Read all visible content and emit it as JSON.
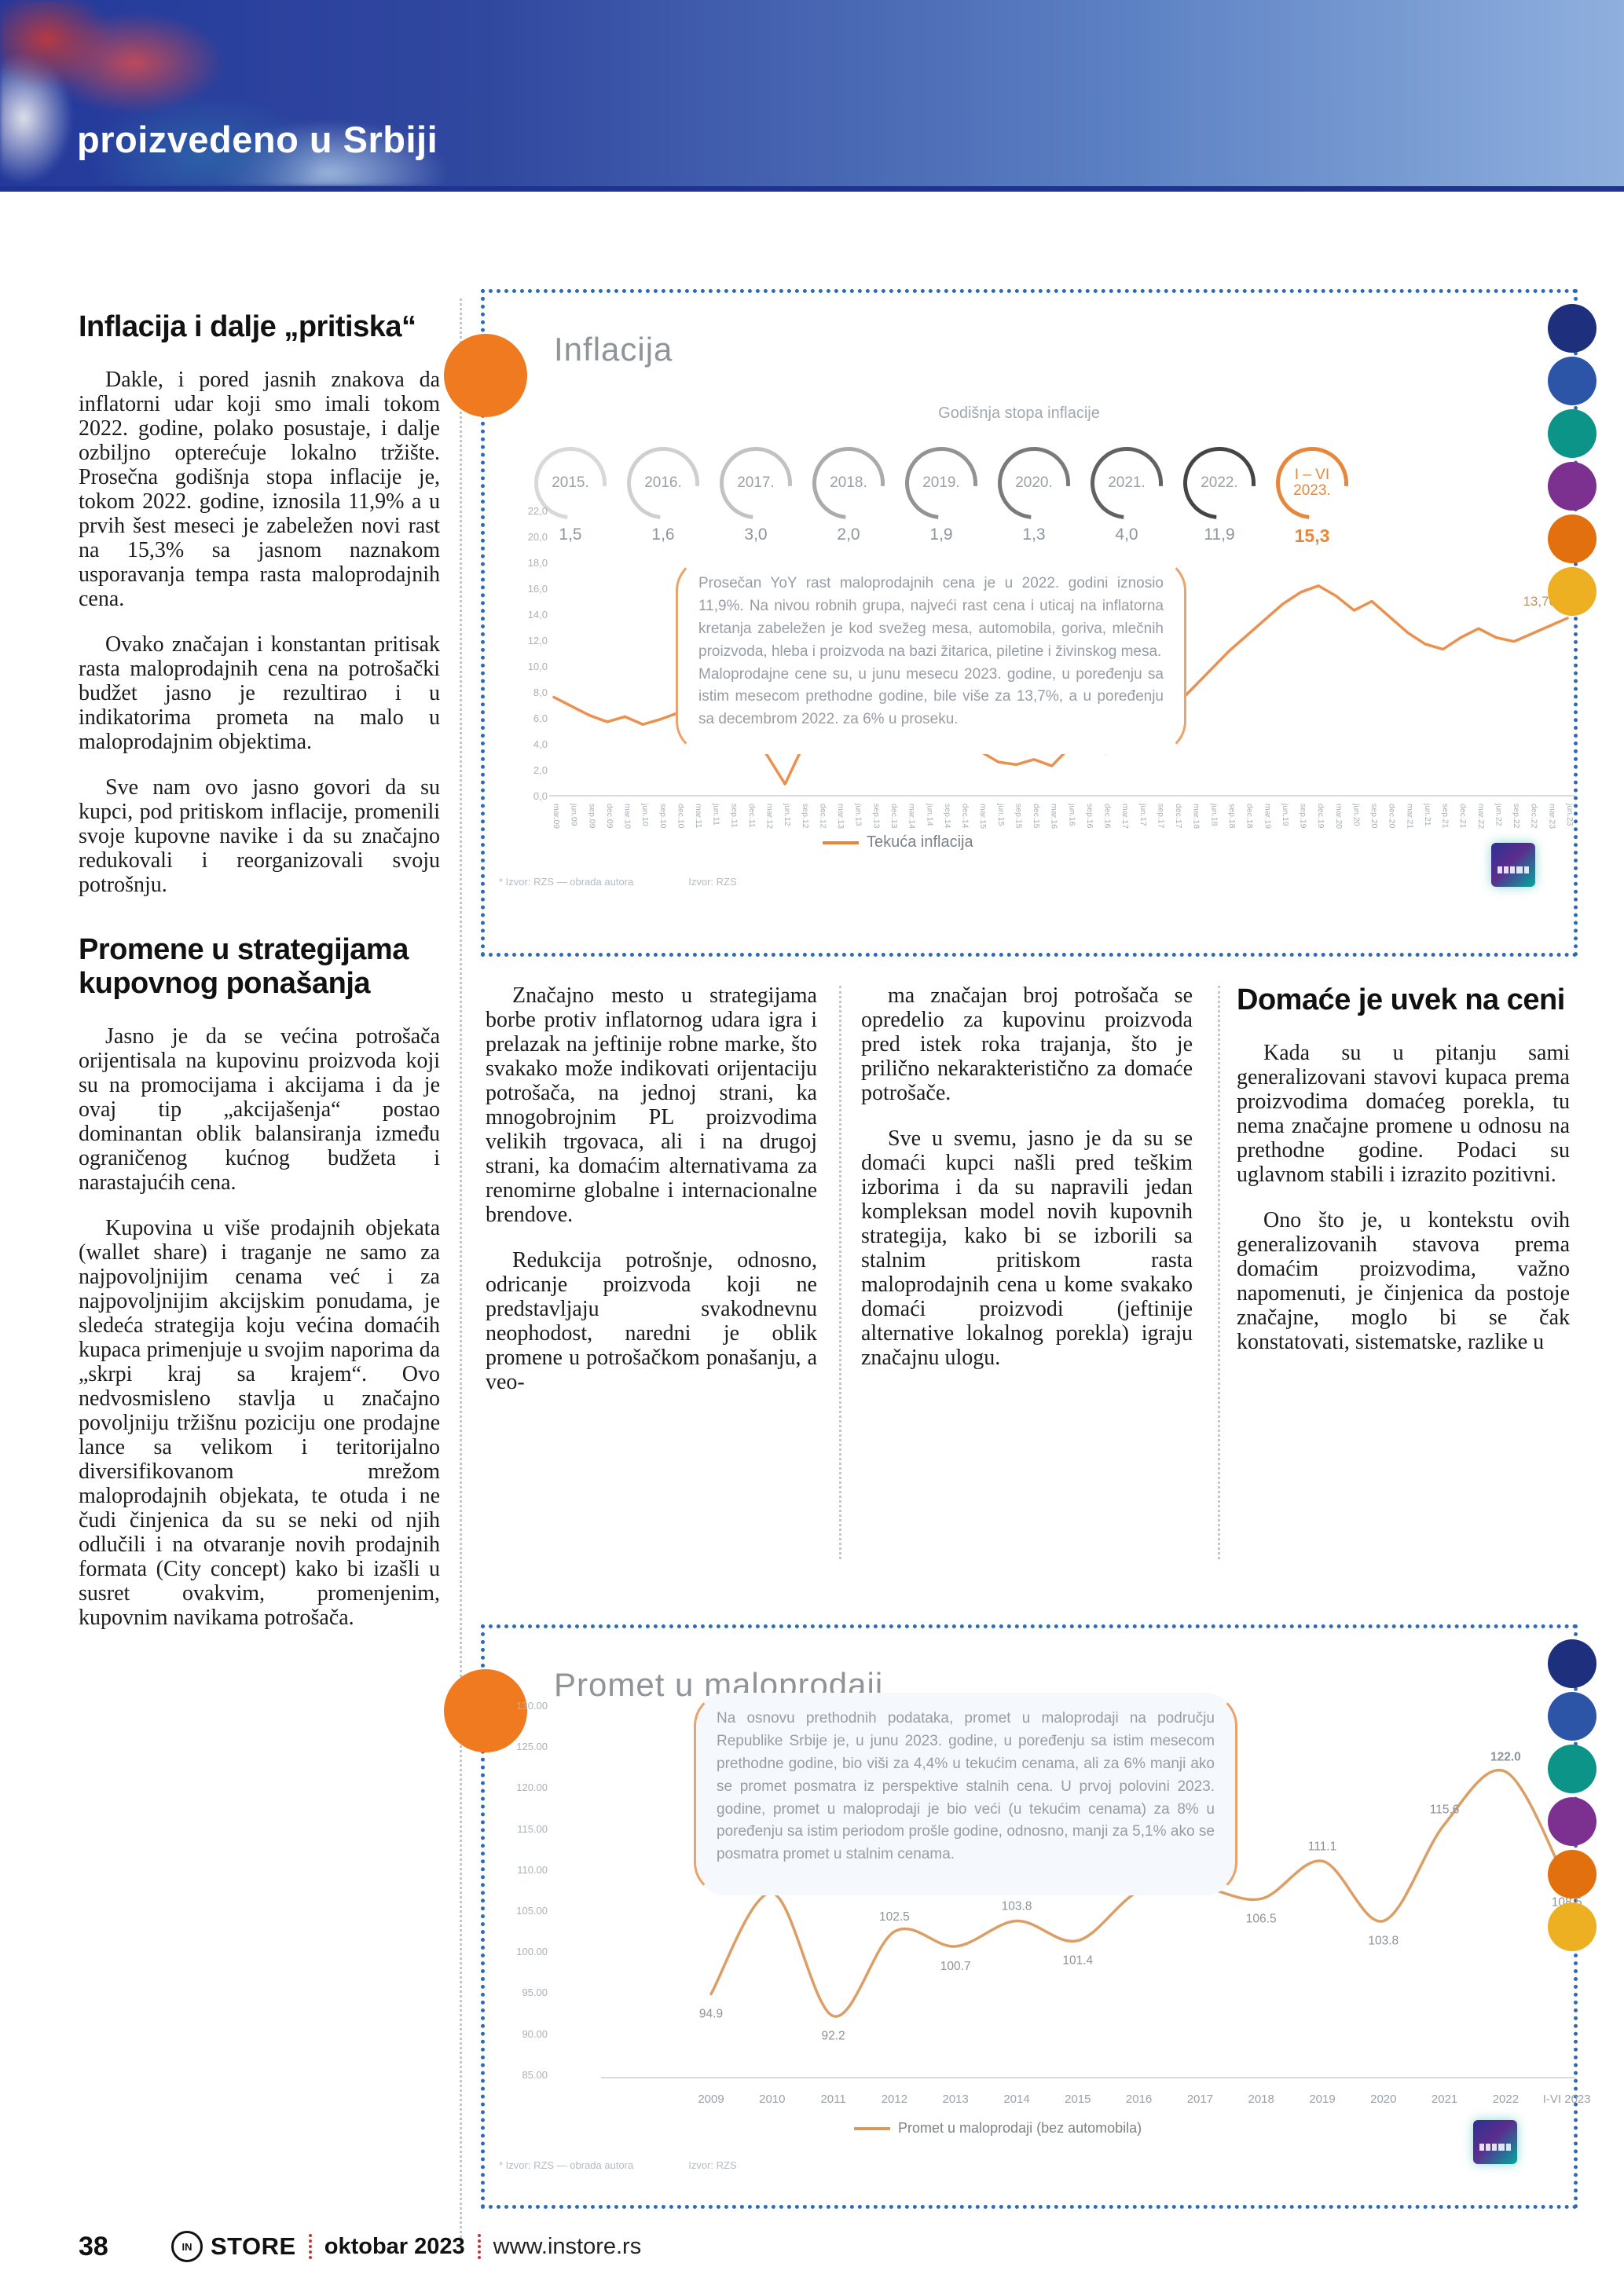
{
  "header": {
    "title": "proizvedeno u Srbiji"
  },
  "article": {
    "h1": "Inflacija i dalje „pritiska“",
    "col1_paras": [
      "Dakle, i pored jasnih znakova da inflatorni udar koji smo imali tokom 2022. godine, polako posustaje, i dalje ozbiljno opterećuje lokalno tržište. Prosečna godišnja stopa inflacije je, tokom 2022. godine, iznosila 11,9% a u prvih šest meseci je zabeležen novi rast na 15,3% sa jasnom naznakom usporavanja tempa rasta maloprodajnih cena.",
      "Ovako značajan i konstantan pritisak rasta maloprodajnih cena na potrošački budžet jasno je rezultirao i u indikatorima prometa na malo u maloprodajnim objektima.",
      "Sve nam ovo jasno govori da su kupci, pod pritiskom inflacije, promenili svoje kupovne navike i da su značajno redukovali i reorganizovali svoju potrošnju."
    ],
    "h2": "Promene u strategijama kupovnog ponašanja",
    "col1b_paras": [
      "Jasno je da se većina potrošača orijentisala na kupovinu proizvoda koji su na promocijama i akcijama i da je ovaj tip „akcijašenja“ postao dominantan oblik balansiranja između ograničenog kućnog budžeta i narastajućih cena.",
      "Kupovina u više prodajnih objekata (wallet share) i traganje ne samo za najpovoljnijim cenama već i za najpovoljnijim akcijskim ponudama, je sledeća strategija koju većina domaćih kupaca primenjuje u svojim naporima da „skrpi kraj sa krajem“. Ovo nedvosmisleno stavlja u značajno povoljniju tržišnu poziciju one prodajne lance sa velikom i teritorijalno diversifikovanom mrežom maloprodajnih objekata, te otuda i ne čudi činjenica da su se neki od njih odlučili i na otvaranje novih prodajnih formata (City concept) kako bi izašli u susret ovakvim, promenjenim, kupovnim navikama potrošača."
    ],
    "col2_paras": [
      "Značajno mesto u strategijama borbe protiv inflatornog udara igra i prelazak na jeftinije robne marke, što svakako može indikovati orijentaciju potrošača, na jednoj strani, ka mnogobrojnim PL proizvodima velikih trgovaca, ali i na drugoj strani, ka domaćim alternativama za renomirne globalne i internacionalne brendove.",
      "Redukcija potrošnje, odnosno, odricanje proizvoda koji ne predstavljaju svakodnevnu neophodost, naredni je oblik promene u potrošačkom ponašanju, a veo-"
    ],
    "col3_paras": [
      "ma značajan broj potrošača se opredelio za kupovinu proizvoda pred istek roka trajanja, što je prilično nekarakteristično za domaće potrošače.",
      "Sve u svemu, jasno je da su se domaći kupci našli pred teškim izborima i da su napravili jedan kompleksan model novih kupovnih strategija, kako bi se izborili sa stalnim pritiskom rasta maloprodajnih cena u kome svakako domaći proizvodi (jeftinije alternative lokalnog porekla) igraju značajnu ulogu."
    ],
    "h3": "Domaće je uvek na ceni",
    "col4_paras": [
      "Kada su u pitanju sami generalizovani stavovi kupaca prema proizvodima domaćeg porekla, tu nema značajne promene u odnosu na prethodne godine. Podaci su uglavnom stabili i izrazito pozitivni.",
      "Ono što je, u kontekstu ovih generalizovanih stavova prema domaćim proizvodima, važno napomenuti, je činjenica da postoje značajne, moglo bi se čak konstatovati, sistematske, razlike u"
    ]
  },
  "chart1": {
    "title": "Inflacija",
    "subtitle": "Godišnja stopa inflacije",
    "legend": "Tekuća inflacija",
    "annotation": "Prosečan YoY rast maloprodajnih cena je u 2022. godini iznosio 11,9%. Na nivou robnih grupa, najveći rast cena i uticaj na inflatorna kretanja zabeležen je kod svežeg mesa, automobila, goriva, mlečnih proizvoda, hleba i proizvoda na bazi žitarica, piletine i živinskog mesa.\nMaloprodajne cene su, u junu mesecu 2023. godine, u poređenju sa istim mesecom prethodne godine, bile više za 13,7%, a u poređenju sa decembrom 2022. za 6% u proseku.",
    "source_left": "*  Izvor: RZS — obrada autora",
    "source_right": "Izvor: RZS",
    "end_label": "13,70",
    "yticks": [
      "22,0",
      "20,0",
      "18,0",
      "16,0",
      "14,0",
      "12,0",
      "10,0",
      "8,0",
      "6,0",
      "4,0",
      "2,0",
      "0,0"
    ]
  },
  "chart2": {
    "title": "Promet u maloprodaji",
    "legend": "Promet u maloprodaji (bez automobila)",
    "annotation": "Na osnovu prethodnih podataka, promet u maloprodaji na području Republike Srbije je, u junu 2023. godine, u poređenju sa istim mesecom prethodne godine, bio viši za 4,4% u tekućim cenama, ali za 6% manji ako se promet posmatra iz perspektive stalnih cena. U prvoj polovini 2023. godine, promet u maloprodaji je bio veći (u tekućim cenama) za 8% u poređenju sa istim periodom prošle godine, odnosno, manji za 5,1% ako se posmatra promet u stalnim cenama.",
    "source_left": "*  Izvor: RZS — obrada autora",
    "source_right": "Izvor: RZS",
    "yticks": [
      "130.00",
      "125.00",
      "120.00",
      "115.00",
      "110.00",
      "105.00",
      "100.00",
      "95.00",
      "90.00",
      "85.00"
    ]
  },
  "chart_data": [
    {
      "type": "line",
      "title": "Inflacija",
      "subtitle": "Godišnja stopa inflacije",
      "legend_entries": [
        "Tekuća inflacija"
      ],
      "annual_rates": {
        "categories": [
          "2015.",
          "2016.",
          "2017.",
          "2018.",
          "2019.",
          "2020.",
          "2021.",
          "2022.",
          "I – VI 2023."
        ],
        "values_display": [
          "1,5",
          "1,6",
          "3,0",
          "2,0",
          "1,9",
          "1,3",
          "4,0",
          "11,9",
          "15,3"
        ],
        "values": [
          1.5,
          1.6,
          3.0,
          2.0,
          1.9,
          1.3,
          4.0,
          11.9,
          15.3
        ]
      },
      "x": [
        "mar.09",
        "jun.09",
        "sep.09",
        "dec.09",
        "mar.10",
        "jun.10",
        "sep.10",
        "dec.10",
        "mar.11",
        "jun.11",
        "sep.11",
        "dec.11",
        "mar.12",
        "jun.12",
        "sep.12",
        "dec.12",
        "mar.13",
        "jun.13",
        "sep.13",
        "dec.13",
        "mar.14",
        "jun.14",
        "sep.14",
        "dec.14",
        "mar.15",
        "jun.15",
        "sep.15",
        "dec.15",
        "mar.16",
        "jun.16",
        "sep.16",
        "dec.16",
        "mar.17",
        "jun.17",
        "sep.17",
        "dec.17",
        "mar.18",
        "jun.18",
        "sep.18",
        "dec.18",
        "mar.19",
        "jun.19",
        "sep.19",
        "dec.19",
        "mar.20",
        "jun.20",
        "sep.20",
        "dec.20",
        "mar.21",
        "jun.21",
        "sep.21",
        "dec.21",
        "mar.22",
        "jun.22",
        "sep.22",
        "dec.22",
        "mar.23",
        "jun.23"
      ],
      "values": [
        7.6,
        6.9,
        6.2,
        5.7,
        6.1,
        5.5,
        5.9,
        6.4,
        5.8,
        6.2,
        6.6,
        5.4,
        3.1,
        0.9,
        3.8,
        5.5,
        5.3,
        5.6,
        4.7,
        5.2,
        5.7,
        4.4,
        6.3,
        5.9,
        3.4,
        2.6,
        2.4,
        2.8,
        2.3,
        3.7,
        4.1,
        3.3,
        3.4,
        4.6,
        5.8,
        7.0,
        8.4,
        9.8,
        11.2,
        12.4,
        13.6,
        14.8,
        15.7,
        16.2,
        15.4,
        14.3,
        15.0,
        13.8,
        12.6,
        11.7,
        11.3,
        12.2,
        12.9,
        12.2,
        11.9,
        12.5,
        13.1,
        13.7
      ],
      "end_label": "13,70",
      "ylim": [
        0,
        22
      ],
      "grid": false,
      "legend_position": "bottom-right"
    },
    {
      "type": "line",
      "title": "Promet u maloprodaji",
      "legend_entries": [
        "Promet u maloprodaji (bez automobila)"
      ],
      "categories": [
        "2009",
        "2010",
        "2011",
        "2012",
        "2013",
        "2014",
        "2015",
        "2016",
        "2017",
        "2018",
        "2019",
        "2020",
        "2021",
        "2022",
        "I-VI 2023"
      ],
      "values": [
        94.9,
        107.2,
        92.2,
        102.5,
        100.7,
        103.8,
        101.4,
        107.4,
        107.9,
        106.5,
        111.1,
        103.8,
        115.6,
        122.0,
        108.5
      ],
      "labels": [
        "94.9",
        "107.2",
        "92.2",
        "102.5",
        "100.7",
        "103.8",
        "101.4",
        "107.4",
        "107.9",
        "106.5",
        "111.1",
        "103.8",
        "115.6",
        "122.0",
        "108.5"
      ],
      "labels_below": [
        0,
        2,
        4,
        6,
        9,
        11,
        14
      ],
      "ylim": [
        85,
        130
      ],
      "grid": false,
      "legend_position": "bottom-center"
    }
  ],
  "decor": {
    "chip_colors": [
      "#1e2f7d",
      "#2c55a8",
      "#0d9488",
      "#7c3191",
      "#e2700f",
      "#edb023"
    ],
    "ring_colors": [
      "#d8d8d8",
      "#cfcfcf",
      "#c2c2c2",
      "#ababab",
      "#939393",
      "#7a7a7a",
      "#616161",
      "#454545",
      "#e8873a"
    ],
    "line_color_inflation": "#e8853c",
    "line_color_retail": "#d99a5e",
    "accent_orange": "#ef7a1f",
    "border_blue": "#2f6bb5"
  },
  "footer": {
    "page_number": "38",
    "brand_mark": "IN",
    "brand": "STORE",
    "issue": "oktobar 2023",
    "site": "www.instore.rs"
  }
}
